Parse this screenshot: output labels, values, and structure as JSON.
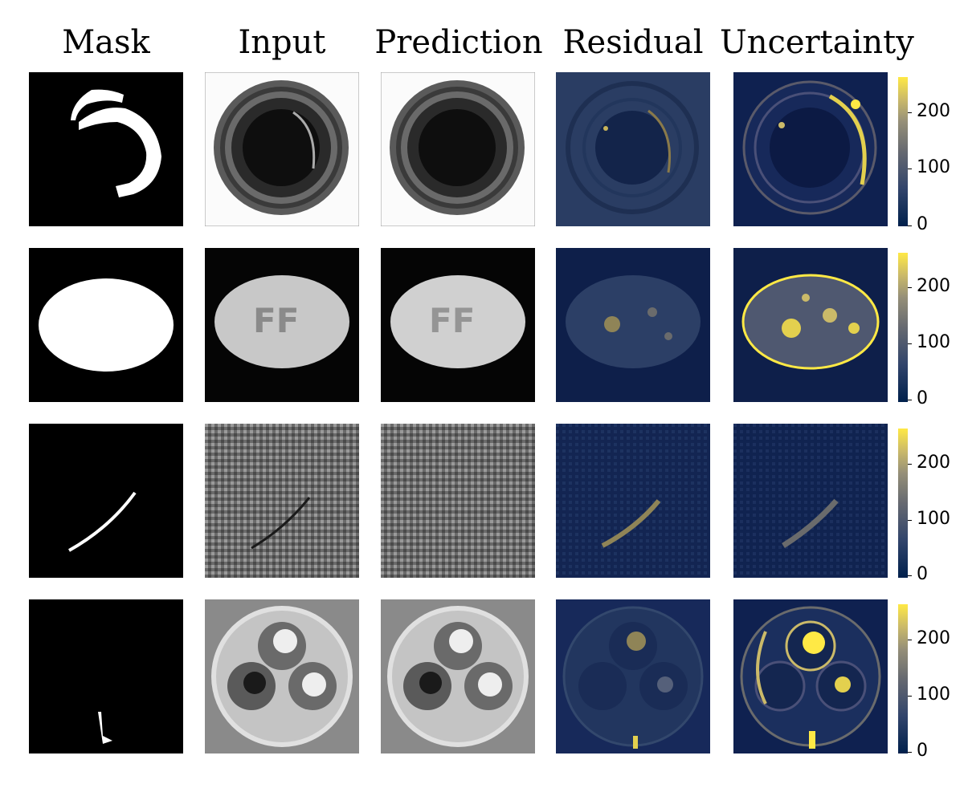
{
  "columns": {
    "mask": "Mask",
    "input": "Input",
    "prediction": "Prediction",
    "residual": "Residual",
    "uncertainty": "Uncertainty"
  },
  "colorbar": {
    "ticks": [
      "200",
      "100",
      "0"
    ],
    "colormap": [
      "#00204c",
      "#31446b",
      "#666970",
      "#958f78",
      "#cbba69",
      "#ffe945"
    ]
  },
  "rows": [
    "bottle",
    "pill",
    "carpet",
    "cable"
  ]
}
